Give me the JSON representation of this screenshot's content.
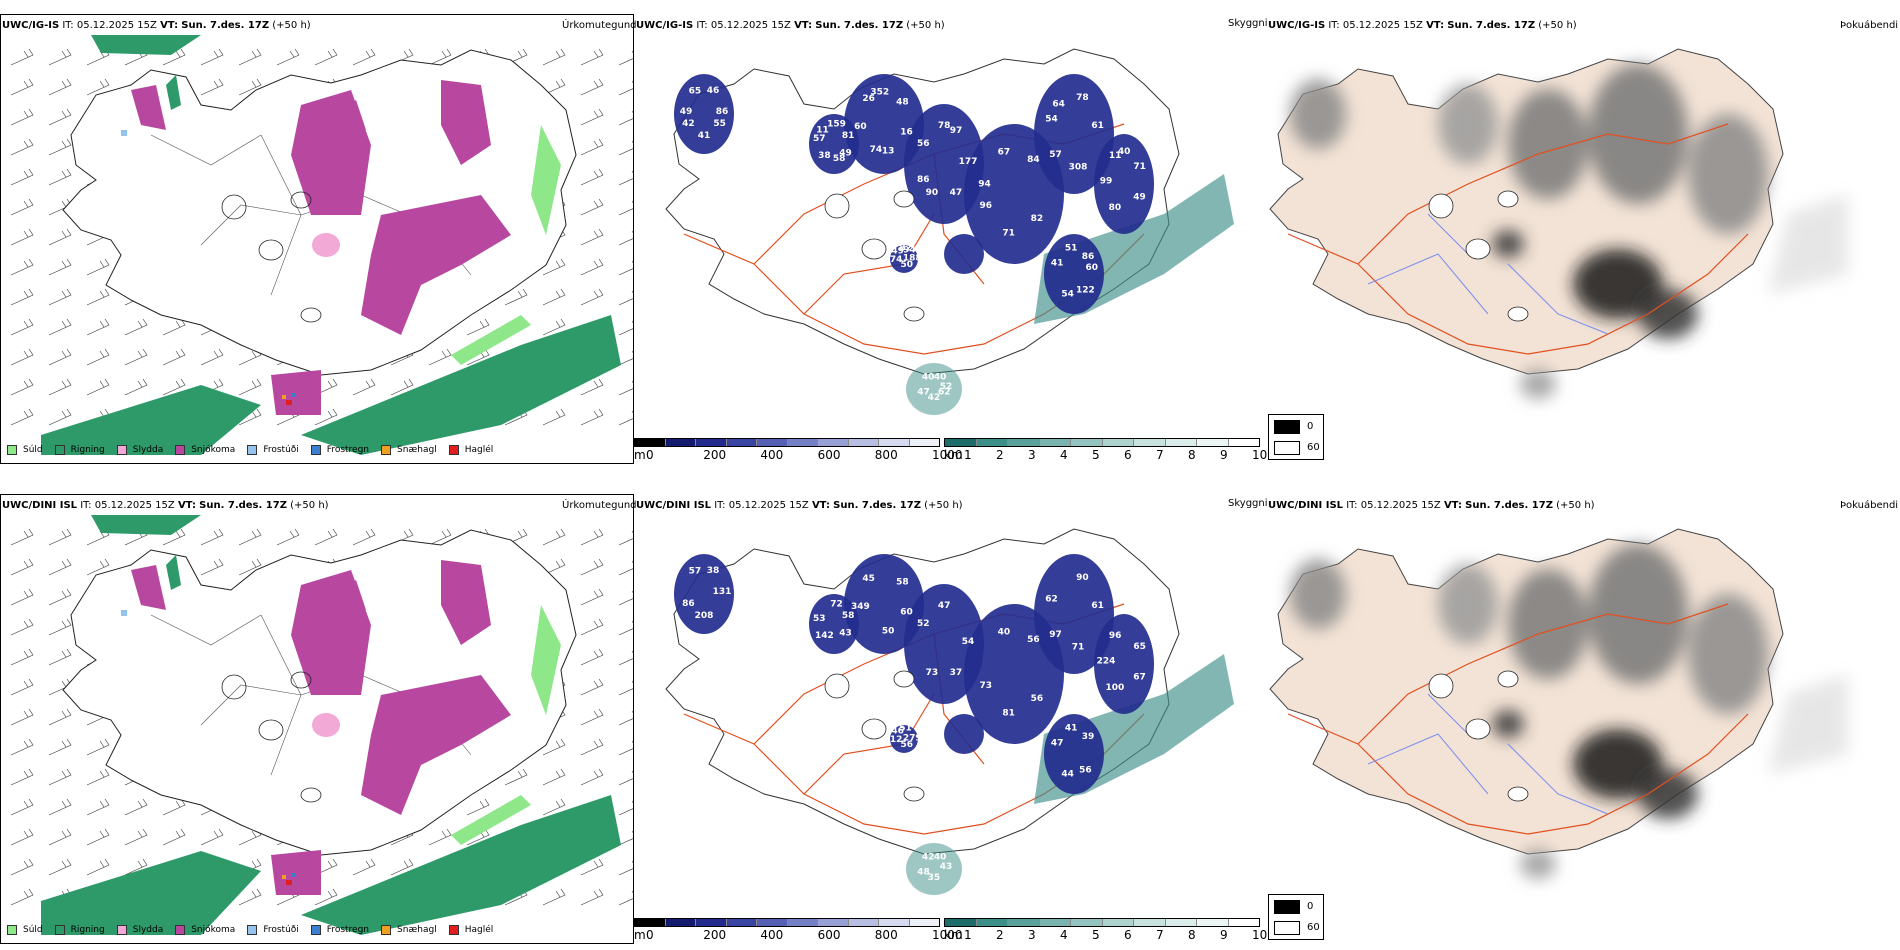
{
  "colors": {
    "drizzle": "#8ee88a",
    "rain": "#2e9a6a",
    "sleet": "#f3a9d6",
    "snow": "#b8479f",
    "freezing_drizzle": "#93c3ee",
    "freezing_rain": "#3b7fd1",
    "snow_pellets": "#f0a020",
    "hail": "#e02020",
    "land_fog": "#f3e3d6",
    "roads": "#e05020",
    "rivers": "#7a8cf0",
    "cloud_dark": "#1a1a1a",
    "ceiling_blue": "#232c8e",
    "ceiling_teal": "#3d8f8a"
  },
  "rows": [
    {
      "model": "UWC/IG-IS",
      "it_label": "IT:",
      "it_value": "05.12.2025 15Z",
      "vt_label": "VT:",
      "vt_value": "Sun. 7.des. 17Z",
      "lead": "(+50 h)",
      "ceiling_numbers": [
        "86",
        "49",
        "13",
        "90",
        "96",
        "54",
        "11",
        "82",
        "86",
        "52",
        "42",
        "57",
        "26",
        "78",
        "84",
        "61",
        "49",
        "50",
        "54",
        "47",
        "46",
        "81",
        "16",
        "47",
        "71",
        "57",
        "99",
        "49",
        "51",
        "40",
        "41",
        "38",
        "60",
        "56",
        "67",
        "78",
        "71",
        "188",
        "122",
        "42",
        "65",
        "159",
        "48",
        "177",
        "82",
        "308",
        "80",
        "74",
        "41",
        "40",
        "55",
        "58",
        "74",
        "86",
        "94",
        "64",
        "40",
        "94",
        "60",
        "62",
        "49",
        "11",
        "352",
        "97"
      ]
    },
    {
      "model": "UWC/DINI ISL",
      "it_label": "IT:",
      "it_value": "05.12.2025 15Z",
      "vt_label": "VT:",
      "vt_value": "Sun. 7.des. 17Z",
      "lead": "(+50 h)",
      "ceiling_numbers": [
        "131",
        "43",
        "50",
        "73",
        "73",
        "62",
        "96",
        "51",
        "39",
        "43",
        "86",
        "53",
        "45",
        "47",
        "56",
        "61",
        "67",
        "56",
        "44",
        "48",
        "38",
        "58",
        "60",
        "37",
        "81",
        "97",
        "224",
        "46",
        "41",
        "40",
        "208",
        "142",
        "349",
        "52",
        "40",
        "90",
        "65",
        "279",
        "56",
        "35",
        "57",
        "72",
        "58",
        "54",
        "56",
        "71",
        "100",
        "12",
        "47",
        "42"
      ]
    }
  ],
  "panel_labels": {
    "precip": "Úrkomutegund",
    "ceiling": "Skyggni",
    "fog": "Þokuábendi"
  },
  "precip_legend": [
    {
      "label": "Súld",
      "color": "#8ee88a"
    },
    {
      "label": "Rigning",
      "color": "#2e9a6a"
    },
    {
      "label": "Slydda",
      "color": "#f3a9d6"
    },
    {
      "label": "Snjókoma",
      "color": "#b8479f"
    },
    {
      "label": "Frostúði",
      "color": "#93c3ee"
    },
    {
      "label": "Frostregn",
      "color": "#3b7fd1"
    },
    {
      "label": "Snæhagl",
      "color": "#f0a020"
    },
    {
      "label": "Haglél",
      "color": "#e02020"
    }
  ],
  "ceiling_bar": {
    "unit": "m",
    "ticks": [
      "0",
      "200",
      "400",
      "600",
      "800",
      "1000"
    ],
    "colors": [
      "#000000",
      "#141a6e",
      "#232c8e",
      "#3a44a3",
      "#5560b4",
      "#7480c4",
      "#96a0d4",
      "#b8bee2",
      "#d6daef",
      "#eef0f8"
    ]
  },
  "visibility_bar": {
    "unit": "km",
    "ticks": [
      "1",
      "2",
      "3",
      "4",
      "5",
      "6",
      "7",
      "8",
      "9",
      "10"
    ],
    "colors": [
      "#1d6e6a",
      "#3d8f8a",
      "#5aa19c",
      "#78b3ae",
      "#93c4bf",
      "#aed3cf",
      "#c6e1de",
      "#dbedeb",
      "#ecf6f5",
      "#ffffff"
    ]
  },
  "fog_legend": {
    "high": "0",
    "low": "60"
  }
}
